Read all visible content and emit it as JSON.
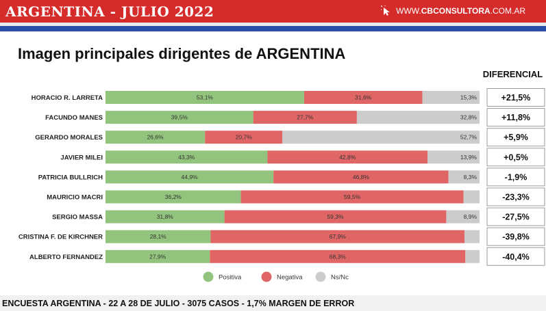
{
  "header": {
    "title": "ARGENTINA - JULIO 2022",
    "brand_prefix": "WWW.",
    "brand_name": "CBCONSULTORA",
    "brand_suffix": ".COM.AR"
  },
  "footer": {
    "text": "ENCUESTA ARGENTINA - 22 A 28  DE JULIO - 3075 CASOS - 1,7% MARGEN DE ERROR"
  },
  "colors": {
    "positiva": "#93c47d",
    "negativa": "#e06666",
    "nsnc": "#cccccc",
    "header_red": "#d62b2b",
    "header_blue": "#2c4fa8"
  },
  "chart_data": {
    "type": "bar",
    "orientation": "horizontal",
    "stacked": true,
    "title": "Imagen principales dirigentes de ARGENTINA",
    "diferencial_label": "DIFERENCIAL",
    "categories": [
      "HORACIO R. LARRETA",
      "FACUNDO MANES",
      "GERARDO MORALES",
      "JAVIER MILEI",
      "PATRICIA BULLRICH",
      "MAURICIO MACRI",
      "SERGIO MASSA",
      "CRISTINA F. DE KIRCHNER",
      "ALBERTO FERNANDEZ"
    ],
    "series": [
      {
        "name": "Positiva",
        "values": [
          53.1,
          39.5,
          26.6,
          43.3,
          44.9,
          36.2,
          31.8,
          28.1,
          27.9
        ],
        "labels": [
          "53,1%",
          "39,5%",
          "26,6%",
          "43,3%",
          "44,9%",
          "36,2%",
          "31,8%",
          "28,1%",
          "27,9%"
        ]
      },
      {
        "name": "Negativa",
        "values": [
          31.6,
          27.7,
          20.7,
          42.8,
          46.8,
          59.5,
          59.3,
          67.9,
          68.3
        ],
        "labels": [
          "31,6%",
          "27,7%",
          "20,7%",
          "42,8%",
          "46,8%",
          "59,5%",
          "59,3%",
          "67,9%",
          "68,3%"
        ]
      },
      {
        "name": "Ns/Nc",
        "values": [
          15.3,
          32.8,
          52.7,
          13.9,
          8.3,
          4.3,
          8.9,
          4.0,
          3.8
        ],
        "labels": [
          "15,3%",
          "32,8%",
          "52,7%",
          "13,9%",
          "8,3%",
          "",
          "8,9%",
          "",
          ""
        ]
      }
    ],
    "diferencial": [
      "+21,5%",
      "+11,8%",
      "+5,9%",
      "+0,5%",
      "-1,9%",
      "-23,3%",
      "-27,5%",
      "-39,8%",
      "-40,4%"
    ],
    "xlim": [
      0,
      100
    ],
    "legend_position": "bottom",
    "grid": false
  }
}
